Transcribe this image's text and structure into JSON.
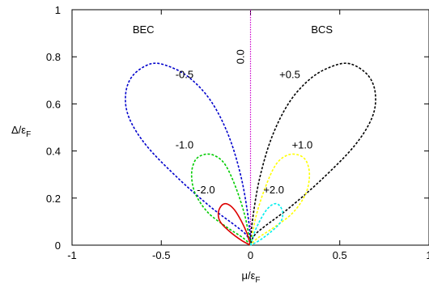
{
  "chart_data": {
    "type": "line",
    "title": "",
    "xlabel": "μ/ε_F",
    "ylabel": "Δ/ε_F",
    "xlim": [
      -1,
      1
    ],
    "ylim": [
      0,
      1
    ],
    "grid": false,
    "x_ticks": [
      {
        "value": -1,
        "label": "-1"
      },
      {
        "value": -0.5,
        "label": "-0.5"
      },
      {
        "value": 0,
        "label": "0"
      },
      {
        "value": 0.5,
        "label": "0.5"
      },
      {
        "value": 1,
        "label": "1"
      }
    ],
    "y_ticks": [
      {
        "value": 0,
        "label": "0"
      },
      {
        "value": 0.2,
        "label": "0.2"
      },
      {
        "value": 0.4,
        "label": "0.4"
      },
      {
        "value": 0.6,
        "label": "0.6"
      },
      {
        "value": 0.8,
        "label": "0.8"
      },
      {
        "value": 1,
        "label": "1"
      }
    ],
    "vertical_line": {
      "x": 0,
      "label": "0.0",
      "color": "#cc00cc"
    },
    "region_labels": [
      {
        "text": "BEC",
        "x": -0.6,
        "y": 0.9
      },
      {
        "text": "BCS",
        "x": 0.4,
        "y": 0.9
      }
    ],
    "series": [
      {
        "label": "-0.5",
        "color": "#0000cc",
        "dashed": true,
        "points": [
          [
            0,
            0
          ],
          [
            -0.02,
            0.04
          ],
          [
            -0.08,
            0.08
          ],
          [
            -0.22,
            0.16
          ],
          [
            -0.4,
            0.28
          ],
          [
            -0.58,
            0.42
          ],
          [
            -0.68,
            0.54
          ],
          [
            -0.7,
            0.64
          ],
          [
            -0.66,
            0.72
          ],
          [
            -0.56,
            0.77
          ],
          [
            -0.46,
            0.76
          ],
          [
            -0.34,
            0.71
          ],
          [
            -0.22,
            0.61
          ],
          [
            -0.12,
            0.46
          ],
          [
            -0.05,
            0.28
          ],
          [
            -0.01,
            0.1
          ],
          [
            0,
            0
          ]
        ],
        "label_pos": {
          "x": -0.37,
          "y": 0.71
        }
      },
      {
        "label": "-1.0",
        "color": "#00cc00",
        "dashed": true,
        "points": [
          [
            0,
            0
          ],
          [
            -0.04,
            0.03
          ],
          [
            -0.14,
            0.08
          ],
          [
            -0.24,
            0.14
          ],
          [
            -0.31,
            0.22
          ],
          [
            -0.33,
            0.3
          ],
          [
            -0.31,
            0.36
          ],
          [
            -0.26,
            0.385
          ],
          [
            -0.2,
            0.38
          ],
          [
            -0.14,
            0.34
          ],
          [
            -0.08,
            0.24
          ],
          [
            -0.03,
            0.12
          ],
          [
            0,
            0
          ]
        ],
        "label_pos": {
          "x": -0.37,
          "y": 0.41
        }
      },
      {
        "label": "-2.0",
        "color": "#dd0000",
        "dashed": false,
        "points": [
          [
            0,
            0
          ],
          [
            -0.05,
            0.02
          ],
          [
            -0.12,
            0.06
          ],
          [
            -0.17,
            0.1
          ],
          [
            -0.18,
            0.14
          ],
          [
            -0.16,
            0.17
          ],
          [
            -0.13,
            0.175
          ],
          [
            -0.09,
            0.15
          ],
          [
            -0.05,
            0.1
          ],
          [
            -0.02,
            0.05
          ],
          [
            0,
            0
          ]
        ],
        "label_pos": {
          "x": -0.25,
          "y": 0.22
        }
      },
      {
        "label": "+0.5",
        "color": "#000000",
        "dashed": true,
        "points": [
          [
            0,
            0
          ],
          [
            0.01,
            0.1
          ],
          [
            0.05,
            0.28
          ],
          [
            0.12,
            0.46
          ],
          [
            0.22,
            0.61
          ],
          [
            0.34,
            0.71
          ],
          [
            0.46,
            0.76
          ],
          [
            0.56,
            0.77
          ],
          [
            0.66,
            0.72
          ],
          [
            0.7,
            0.64
          ],
          [
            0.68,
            0.54
          ],
          [
            0.58,
            0.42
          ],
          [
            0.4,
            0.28
          ],
          [
            0.22,
            0.16
          ],
          [
            0.08,
            0.08
          ],
          [
            0.02,
            0.04
          ],
          [
            0,
            0
          ]
        ],
        "label_pos": {
          "x": 0.22,
          "y": 0.71
        }
      },
      {
        "label": "+1.0",
        "color": "#ffff00",
        "dashed": true,
        "points": [
          [
            0,
            0
          ],
          [
            0.03,
            0.12
          ],
          [
            0.08,
            0.24
          ],
          [
            0.14,
            0.34
          ],
          [
            0.2,
            0.38
          ],
          [
            0.26,
            0.385
          ],
          [
            0.31,
            0.36
          ],
          [
            0.33,
            0.3
          ],
          [
            0.31,
            0.22
          ],
          [
            0.24,
            0.14
          ],
          [
            0.14,
            0.08
          ],
          [
            0.04,
            0.03
          ],
          [
            0,
            0
          ]
        ],
        "label_pos": {
          "x": 0.29,
          "y": 0.41
        }
      },
      {
        "label": "+2.0",
        "color": "#00eeee",
        "dashed": true,
        "points": [
          [
            0,
            0
          ],
          [
            0.02,
            0.05
          ],
          [
            0.05,
            0.1
          ],
          [
            0.09,
            0.15
          ],
          [
            0.13,
            0.175
          ],
          [
            0.16,
            0.17
          ],
          [
            0.18,
            0.14
          ],
          [
            0.17,
            0.1
          ],
          [
            0.12,
            0.06
          ],
          [
            0.05,
            0.02
          ],
          [
            0,
            0
          ]
        ],
        "label_pos": {
          "x": 0.13,
          "y": 0.22
        }
      }
    ]
  }
}
